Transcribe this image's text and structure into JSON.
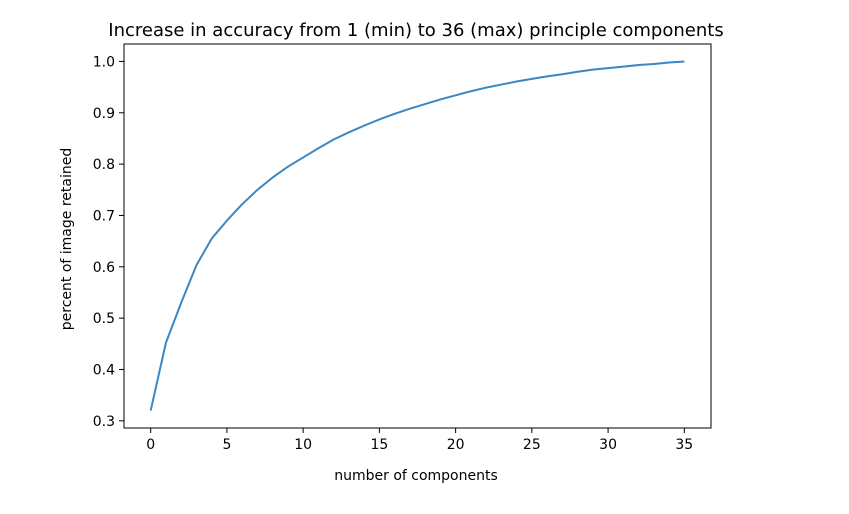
{
  "chart_data": {
    "type": "line",
    "title": "Increase in accuracy from 1 (min) to 36 (max) principle components",
    "xlabel": "number of components",
    "ylabel": "percent of image retained",
    "xlim": [
      -1.75,
      36.75
    ],
    "ylim": [
      0.286,
      1.034
    ],
    "xticks": [
      0,
      5,
      10,
      15,
      20,
      25,
      30,
      35
    ],
    "xtick_labels": [
      "0",
      "5",
      "10",
      "15",
      "20",
      "25",
      "30",
      "35"
    ],
    "yticks": [
      0.3,
      0.4,
      0.5,
      0.6,
      0.7,
      0.8,
      0.9,
      1.0
    ],
    "ytick_labels": [
      "0.3",
      "0.4",
      "0.5",
      "0.6",
      "0.7",
      "0.8",
      "0.9",
      "1.0"
    ],
    "grid": false,
    "line_color": "#3b87c2",
    "series": [
      {
        "x": [
          0,
          1,
          2,
          3,
          4,
          5,
          6,
          7,
          8,
          9,
          10,
          11,
          12,
          13,
          14,
          15,
          16,
          17,
          18,
          19,
          20,
          21,
          22,
          23,
          24,
          25,
          26,
          27,
          28,
          29,
          30,
          31,
          32,
          33,
          34,
          35
        ],
        "values": [
          0.32,
          0.452,
          0.53,
          0.603,
          0.655,
          0.69,
          0.722,
          0.75,
          0.774,
          0.795,
          0.813,
          0.831,
          0.848,
          0.862,
          0.875,
          0.887,
          0.898,
          0.908,
          0.917,
          0.926,
          0.934,
          0.942,
          0.949,
          0.955,
          0.961,
          0.966,
          0.971,
          0.975,
          0.98,
          0.984,
          0.987,
          0.99,
          0.993,
          0.995,
          0.998,
          1.0
        ]
      }
    ]
  }
}
